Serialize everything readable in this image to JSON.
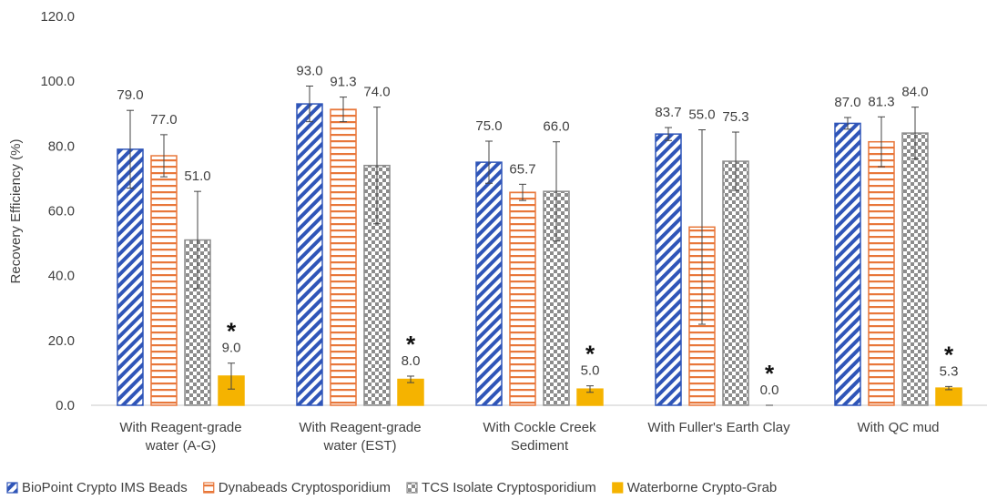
{
  "chart_data": {
    "type": "bar",
    "y_label": "Recovery Efficiency (%)",
    "ylim": [
      0,
      120
    ],
    "yticks": [
      {
        "value": 0,
        "label": "0.0"
      },
      {
        "value": 20,
        "label": "20.0"
      },
      {
        "value": 40,
        "label": "40.0"
      },
      {
        "value": 60,
        "label": "60.0"
      },
      {
        "value": 80,
        "label": "80.0"
      },
      {
        "value": 100,
        "label": "100.0"
      },
      {
        "value": 120,
        "label": "120.0"
      }
    ],
    "grid": false,
    "legend_position": "bottom",
    "categories": [
      [
        "With Reagent-grade",
        "water (A-G)"
      ],
      [
        "With Reagent-grade",
        "water (EST)"
      ],
      [
        "With Cockle Creek",
        "Sediment"
      ],
      [
        "With Fuller's Earth Clay"
      ],
      [
        "With QC mud"
      ]
    ],
    "series": [
      {
        "name": "BioPoint Crypto IMS Beads",
        "color": "#2f55b8",
        "pattern": "diagonal",
        "values": [
          79,
          93,
          75,
          83.7,
          87
        ],
        "value_labels": [
          "79.0",
          "93.0",
          "75.0",
          "83.7",
          "87.0"
        ],
        "errors": [
          12,
          5.5,
          6.5,
          2,
          1.8
        ]
      },
      {
        "name": "Dynabeads Cryptosporidium",
        "color": "#e8773a",
        "pattern": "horizontal",
        "values": [
          77,
          91.3,
          65.7,
          55,
          81.3
        ],
        "value_labels": [
          "77.0",
          "91.3",
          "65.7",
          "55.0",
          "81.3"
        ],
        "errors": [
          6.5,
          3.8,
          2.5,
          30,
          7.7
        ]
      },
      {
        "name": "TCS Isolate Cryptosporidium",
        "color": "#8c8c8c",
        "pattern": "checker",
        "values": [
          51,
          74,
          66,
          75.3,
          84
        ],
        "value_labels": [
          "51.0",
          "74.0",
          "66.0",
          "75.3",
          "84.0"
        ],
        "errors": [
          15,
          18,
          15.3,
          9,
          8
        ]
      },
      {
        "name": "Waterborne Crypto-Grab",
        "color": "#f5b300",
        "pattern": "solid",
        "values": [
          9,
          8,
          5,
          0,
          5.3
        ],
        "value_labels": [
          "9.0",
          "8.0",
          "5.0",
          "0.0",
          "5.3"
        ],
        "errors": [
          4,
          1,
          1,
          0,
          0.5
        ],
        "significance_labels": [
          "*",
          "*",
          "*",
          "*",
          "*"
        ]
      }
    ]
  }
}
